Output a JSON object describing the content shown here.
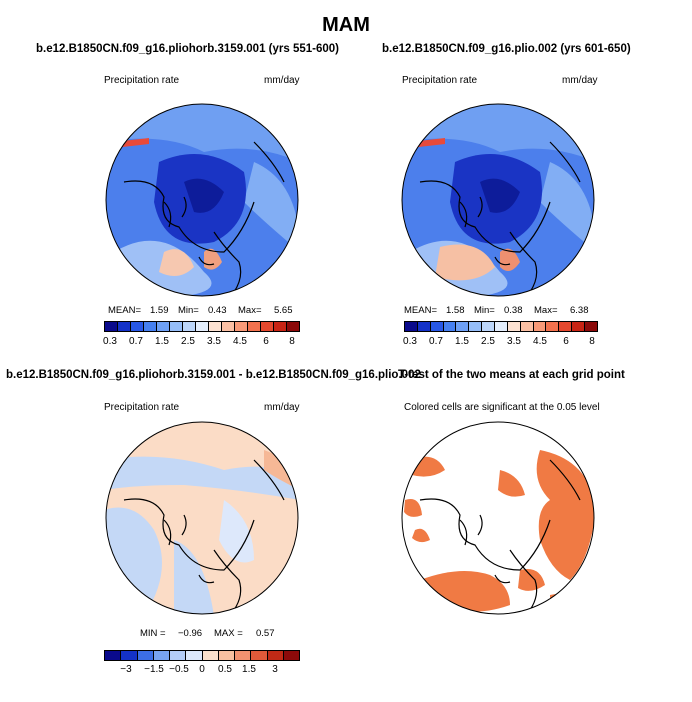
{
  "title": "MAM",
  "panels": {
    "tl": {
      "title": "b.e12.B1850CN.f09_g16.pliohorb.3159.001 (yrs 551-600)",
      "left_label": "Precipitation rate",
      "right_label": "mm/day",
      "stats": {
        "mean_label": "MEAN=",
        "mean": "1.59",
        "min_label": "Min=",
        "min": "0.43",
        "max_label": "Max=",
        "max": "5.65"
      }
    },
    "tr": {
      "title": "b.e12.B1850CN.f09_g16.plio.002 (yrs 601-650)",
      "left_label": "Precipitation rate",
      "right_label": "mm/day",
      "stats": {
        "mean_label": "MEAN=",
        "mean": "1.58",
        "min_label": "Min=",
        "min": "0.38",
        "max_label": "Max=",
        "max": "6.38"
      }
    },
    "bl": {
      "title": "b.e12.B1850CN.f09_g16.pliohorb.3159.001 - b.e12.B1850CN.f09_g16.plio.002",
      "left_label": "Precipitation rate",
      "right_label": "mm/day",
      "stats": {
        "min_label": "MIN =",
        "min": "−0.96",
        "max_label": "MAX =",
        "max": "0.57"
      }
    },
    "br": {
      "title": "T-test of the two means at each grid point",
      "left_label": "Colored cells are significant at the 0.05 level"
    }
  },
  "colorbars": {
    "precip": {
      "ticks": [
        "0.3",
        "0.7",
        "1.5",
        "2.5",
        "3.5",
        "4.5",
        "6",
        "8"
      ],
      "colors": [
        "#0a0a8c",
        "#1432c8",
        "#2858e6",
        "#4680f0",
        "#6ea0f5",
        "#96bef8",
        "#bcd6fa",
        "#e4eefc",
        "#fce2d2",
        "#fbc0a4",
        "#f89a78",
        "#f2724e",
        "#e4482e",
        "#c82414",
        "#8c0a0a"
      ]
    },
    "diff": {
      "ticks": [
        "−3",
        "−1.5",
        "−0.5",
        "0",
        "0.5",
        "1.5",
        "3"
      ],
      "colors": [
        "#0a0a8c",
        "#1432c8",
        "#3c6ee6",
        "#78a4f2",
        "#b4cdf8",
        "#dde8fb",
        "#fbe0cc",
        "#f8c0a0",
        "#f29270",
        "#e05a3a",
        "#c02a16",
        "#8c0a0a"
      ]
    }
  },
  "colors": {
    "deep_blue": "#1f3fd8",
    "light_blue": "#c4d8f6",
    "pale_orange": "#fbdcc6",
    "sig_orange": "#f07a44"
  }
}
